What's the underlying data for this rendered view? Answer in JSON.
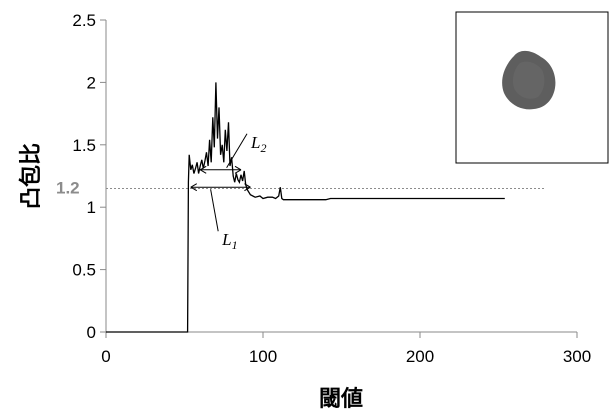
{
  "chart_data": {
    "type": "line",
    "title": "",
    "xlabel": "閾値",
    "ylabel": "凸包比",
    "xlim": [
      0,
      300
    ],
    "ylim": [
      0,
      2.5
    ],
    "x_ticks": [
      "0",
      "100",
      "200",
      "300"
    ],
    "y_ticks": [
      "0",
      "0.5",
      "1",
      "1.5",
      "2",
      "2.5"
    ],
    "grid": false,
    "series": [
      {
        "x": [
          0,
          52,
          52.5,
          53,
          54,
          55,
          56,
          57,
          58,
          59,
          60,
          61,
          62,
          63,
          64,
          65,
          66,
          67,
          68,
          69,
          70,
          71,
          72,
          73,
          74,
          75,
          76,
          77,
          78,
          79,
          80,
          81,
          82,
          83,
          84,
          85,
          86,
          87,
          88,
          89,
          90,
          92,
          95,
          98,
          100,
          103,
          106,
          108,
          110,
          111,
          112,
          113,
          116,
          120,
          130,
          140,
          143,
          150,
          170,
          200,
          230,
          254
        ],
        "y": [
          0,
          0,
          1.2,
          1.42,
          1.3,
          1.34,
          1.27,
          1.31,
          1.36,
          1.27,
          1.33,
          1.38,
          1.31,
          1.37,
          1.44,
          1.33,
          1.54,
          1.36,
          1.72,
          1.48,
          2.0,
          1.55,
          1.8,
          1.42,
          1.5,
          1.36,
          1.62,
          1.45,
          1.68,
          1.33,
          1.4,
          1.25,
          1.2,
          1.27,
          1.22,
          1.2,
          1.26,
          1.21,
          1.29,
          1.18,
          1.14,
          1.1,
          1.08,
          1.09,
          1.07,
          1.08,
          1.08,
          1.07,
          1.09,
          1.16,
          1.07,
          1.06,
          1.06,
          1.06,
          1.06,
          1.06,
          1.07,
          1.07,
          1.07,
          1.07,
          1.07,
          1.07
        ]
      }
    ],
    "reference_line": {
      "y": 1.15,
      "label": "1.2",
      "x_end": 280
    },
    "annotations": [
      {
        "text": "L",
        "sub": "2",
        "x_from": 60,
        "x_to": 86,
        "y": 1.3
      },
      {
        "text": "L",
        "sub": "1",
        "x_from": 54,
        "x_to": 92,
        "y": 1.16
      }
    ],
    "inset": {
      "description_icon": "cell-blob-image"
    }
  }
}
